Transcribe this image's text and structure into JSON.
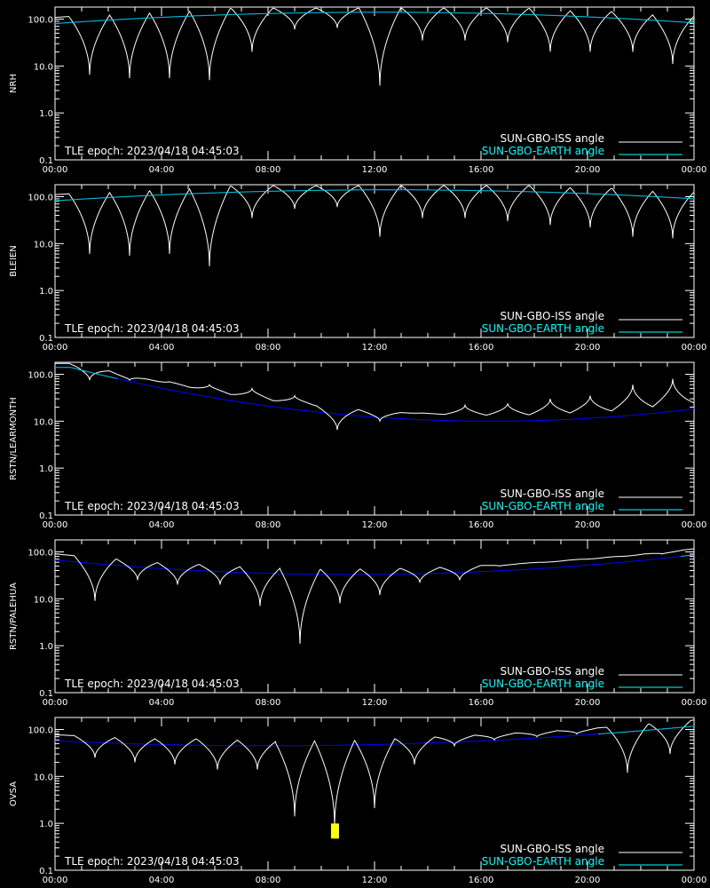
{
  "chart_data": [
    {
      "type": "line",
      "station": "NRH",
      "epoch_text": "TLE epoch: 2023/04/18 04:45:03",
      "y_log": true,
      "ylim": [
        0.1,
        180
      ],
      "xlim_hours": [
        0,
        24
      ],
      "x_ticks": [
        "00:00",
        "04:00",
        "08:00",
        "12:00",
        "16:00",
        "20:00",
        "00:00"
      ],
      "y_ticks": [
        "0.1",
        "1.0",
        "10.0",
        "100.0"
      ],
      "legend": [
        "SUN-GBO-ISS angle",
        "SUN-GBO-EARTH angle"
      ],
      "earth_curve": {
        "t0": 12.2,
        "peak": 140,
        "half_width": 20
      },
      "iss_dips_hours": [
        1.3,
        2.8,
        4.3,
        5.8,
        7.4,
        9.0,
        10.6,
        12.2,
        13.8,
        15.4,
        17.0,
        18.6,
        20.1,
        21.7,
        23.2
      ],
      "iss_dip_minima": [
        6.5,
        5.5,
        5.5,
        5.0,
        20,
        60,
        65,
        3.8,
        35,
        35,
        32,
        20,
        20,
        20,
        11
      ]
    },
    {
      "type": "line",
      "station": "BLEIEN",
      "epoch_text": "TLE epoch: 2023/04/18 04:45:03",
      "y_log": true,
      "ylim": [
        0.1,
        180
      ],
      "xlim_hours": [
        0,
        24
      ],
      "x_ticks": [
        "00:00",
        "04:00",
        "08:00",
        "12:00",
        "16:00",
        "20:00",
        "00:00"
      ],
      "y_ticks": [
        "0.1",
        "1.0",
        "10.0",
        "100.0"
      ],
      "legend": [
        "SUN-GBO-ISS angle",
        "SUN-GBO-EARTH angle"
      ],
      "earth_curve": {
        "t0": 12.6,
        "peak": 140,
        "half_width": 21
      },
      "iss_dips_hours": [
        1.3,
        2.8,
        4.3,
        5.8,
        7.4,
        9.0,
        10.6,
        12.2,
        13.8,
        15.4,
        17.0,
        18.6,
        20.1,
        21.7,
        23.2
      ],
      "iss_dip_minima": [
        6.0,
        5.5,
        6.0,
        3.3,
        35,
        55,
        60,
        14,
        35,
        35,
        30,
        25,
        22,
        14,
        13
      ]
    },
    {
      "type": "line",
      "station": "RSTN/LEARMONTH",
      "epoch_text": "TLE epoch: 2023/04/18 04:45:03",
      "y_log": true,
      "ylim": [
        0.1,
        180
      ],
      "xlim_hours": [
        0,
        24
      ],
      "x_ticks": [
        "00:00",
        "04:00",
        "08:00",
        "12:00",
        "16:00",
        "20:00",
        "00:00"
      ],
      "y_ticks": [
        "0.1",
        "1.0",
        "10.0",
        "100.0"
      ],
      "legend": [
        "SUN-GBO-ISS angle",
        "SUN-GBO-EARTH angle"
      ],
      "earth_curve": {
        "t0": 16.4,
        "peak": 10,
        "half_width": 20
      },
      "iss_dips_hours": [
        1.3,
        2.8,
        4.3,
        5.8,
        7.4,
        9.0,
        10.6,
        12.2,
        13.8,
        15.4,
        17.0,
        18.6,
        20.1,
        21.7,
        23.2
      ],
      "iss_dip_minima": [
        75,
        75,
        70,
        60,
        50,
        35,
        6.5,
        10,
        15,
        22,
        24,
        30,
        35,
        60,
        80
      ]
    },
    {
      "type": "line",
      "station": "RSTN/PALEHUA",
      "epoch_text": "TLE epoch: 2023/04/18 04:45:03",
      "y_log": true,
      "ylim": [
        0.1,
        180
      ],
      "xlim_hours": [
        0,
        24
      ],
      "x_ticks": [
        "00:00",
        "04:00",
        "08:00",
        "12:00",
        "16:00",
        "20:00",
        "00:00"
      ],
      "y_ticks": [
        "0.1",
        "1.0",
        "10.0",
        "100.0"
      ],
      "legend": [
        "SUN-GBO-ISS angle",
        "SUN-GBO-EARTH angle"
      ],
      "earth_curve": {
        "t0": 11.1,
        "peak": 33,
        "half_width": 20
      },
      "iss_dips_hours": [
        1.5,
        3.1,
        4.6,
        6.2,
        7.7,
        9.2,
        10.7,
        12.2,
        13.7,
        15.2,
        16.7,
        18.3,
        19.8,
        21.3,
        22.8
      ],
      "iss_dip_minima": [
        9.0,
        25,
        20,
        20,
        7.0,
        1.1,
        8.0,
        12,
        22,
        25,
        50,
        60,
        70,
        80,
        90
      ]
    },
    {
      "type": "line",
      "station": "OVSA",
      "epoch_text": "TLE epoch: 2023/04/18 04:45:03",
      "y_log": true,
      "ylim": [
        0.1,
        180
      ],
      "xlim_hours": [
        0,
        24
      ],
      "x_ticks": [
        "00:00",
        "04:00",
        "08:00",
        "12:00",
        "16:00",
        "20:00",
        "00:00"
      ],
      "y_ticks": [
        "0.1",
        "1.0",
        "10.0",
        "100.0"
      ],
      "legend": [
        "SUN-GBO-ISS angle",
        "SUN-GBO-EARTH angle"
      ],
      "earth_curve": {
        "t0": 8.0,
        "peak": 45,
        "half_width": 22
      },
      "iss_dips_hours": [
        1.5,
        3.0,
        4.5,
        6.1,
        7.6,
        9.0,
        10.5,
        12.0,
        13.5,
        15.0,
        16.5,
        18.1,
        19.6,
        21.5,
        23.1
      ],
      "iss_dip_minima": [
        25,
        20,
        18,
        14,
        14,
        1.4,
        0.9,
        2.1,
        18,
        45,
        60,
        70,
        80,
        12,
        30
      ],
      "marker": {
        "hour": 10.5,
        "value": 0.7,
        "color": "#ffff00"
      }
    }
  ],
  "colors": {
    "background": "#000000",
    "axis": "#ffffff",
    "iss": "#ffffff",
    "iss_faint": "#9a9a9a",
    "earth_blue": "#0000ff",
    "earth_cyan": "#00cccc",
    "legend_cyan": "#00ffff"
  }
}
